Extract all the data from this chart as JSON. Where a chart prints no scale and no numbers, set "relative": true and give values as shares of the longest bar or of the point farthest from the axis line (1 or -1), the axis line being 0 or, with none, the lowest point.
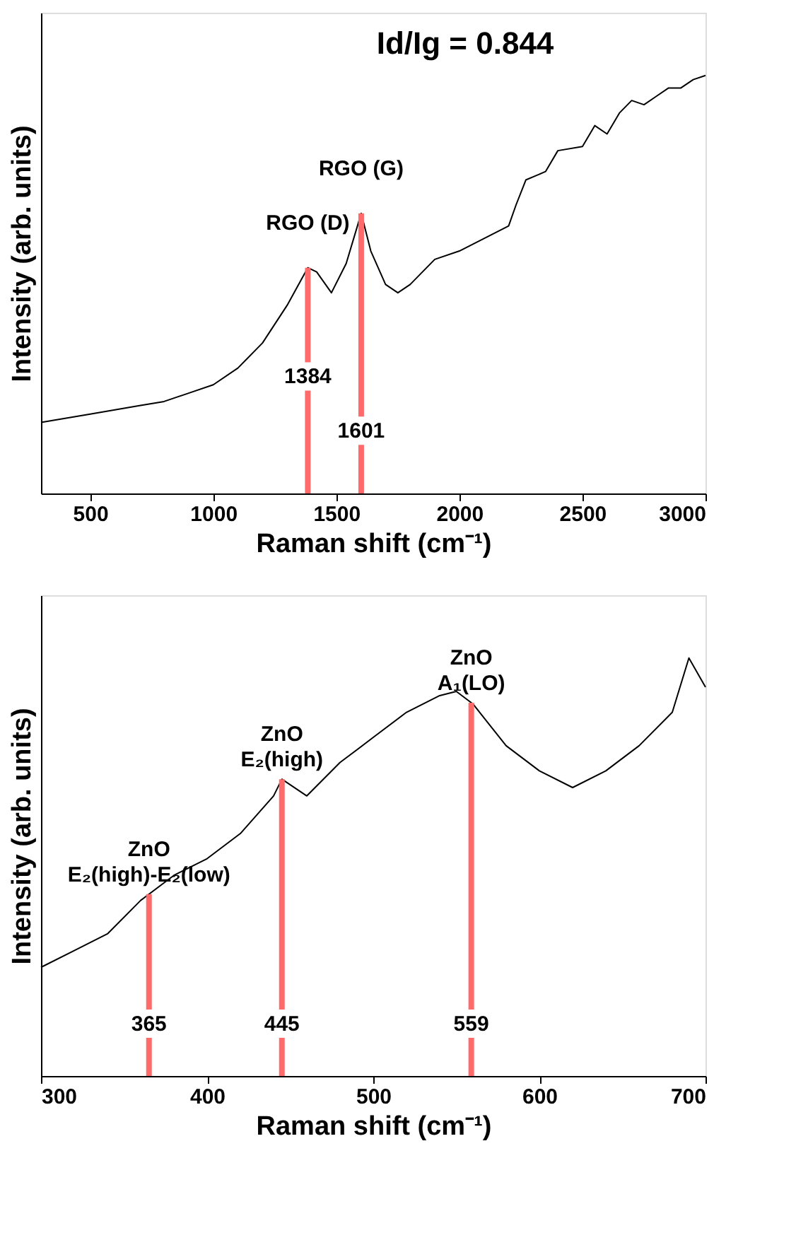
{
  "chart_data": [
    {
      "type": "line",
      "relative": true,
      "xlabel": "Raman shift (cm⁻¹)",
      "ylabel": "Intensity (arb. units)",
      "xlim": [
        300,
        3000
      ],
      "xticks": [
        500,
        1000,
        1500,
        2000,
        2500,
        3000
      ],
      "grid": false,
      "marker": "none",
      "line_style": "solid",
      "series": [
        {
          "color": "#000000",
          "x": [
            300,
            500,
            600,
            700,
            800,
            900,
            1000,
            1100,
            1200,
            1300,
            1384,
            1420,
            1480,
            1540,
            1601,
            1640,
            1700,
            1750,
            1800,
            1900,
            2000,
            2100,
            2200,
            2230,
            2270,
            2350,
            2400,
            2500,
            2550,
            2600,
            2650,
            2700,
            2750,
            2800,
            2850,
            2900,
            2950,
            3000
          ],
          "values": [
            0.17,
            0.19,
            0.2,
            0.21,
            0.22,
            0.24,
            0.26,
            0.3,
            0.36,
            0.45,
            0.54,
            0.53,
            0.48,
            0.55,
            0.67,
            0.58,
            0.5,
            0.48,
            0.5,
            0.56,
            0.58,
            0.61,
            0.64,
            0.69,
            0.75,
            0.77,
            0.82,
            0.83,
            0.88,
            0.86,
            0.91,
            0.94,
            0.93,
            0.95,
            0.97,
            0.97,
            0.99,
            1.0
          ]
        }
      ],
      "ref_lines": [
        {
          "axis": "x",
          "value": 1384,
          "label": "RGO (D)",
          "color": "#ff6b6b"
        },
        {
          "axis": "x",
          "value": 1601,
          "label": "RGO (G)",
          "color": "#ff6b6b"
        }
      ],
      "annotations": [
        "Id/Ig = 0.844",
        {
          "text": "1384",
          "x": 1384,
          "y": 0.28
        },
        {
          "text": "1601",
          "x": 1601,
          "y": 0.15
        }
      ]
    },
    {
      "type": "line",
      "relative": true,
      "xlabel": "Raman shift (cm⁻¹)",
      "ylabel": "Intensity (arb. units)",
      "xlim": [
        300,
        700
      ],
      "xticks": [
        300,
        400,
        500,
        600,
        700
      ],
      "grid": false,
      "marker": "none",
      "line_style": "solid",
      "series": [
        {
          "color": "#000000",
          "x": [
            300,
            320,
            340,
            360,
            380,
            400,
            420,
            440,
            445,
            460,
            480,
            500,
            520,
            540,
            550,
            560,
            580,
            600,
            620,
            640,
            660,
            680,
            690,
            700
          ],
          "values": [
            0.26,
            0.3,
            0.34,
            0.42,
            0.48,
            0.52,
            0.58,
            0.67,
            0.71,
            0.67,
            0.75,
            0.81,
            0.87,
            0.91,
            0.92,
            0.89,
            0.79,
            0.73,
            0.69,
            0.73,
            0.79,
            0.87,
            1.0,
            0.93
          ]
        }
      ],
      "ref_lines": [
        {
          "axis": "x",
          "value": 365,
          "label": "ZnO\nE₂(high)-E₂(low)",
          "color": "#ff6b6b"
        },
        {
          "axis": "x",
          "value": 445,
          "label": "ZnO\nE₂(high)",
          "color": "#ff6b6b"
        },
        {
          "axis": "x",
          "value": 559,
          "label": "ZnO\nA₁(LO)",
          "color": "#ff6b6b"
        }
      ],
      "annotations": [
        {
          "text": "365",
          "x": 365,
          "y": 0.125
        },
        {
          "text": "445",
          "x": 445,
          "y": 0.125
        },
        {
          "text": "559",
          "x": 559,
          "y": 0.125
        }
      ]
    }
  ]
}
